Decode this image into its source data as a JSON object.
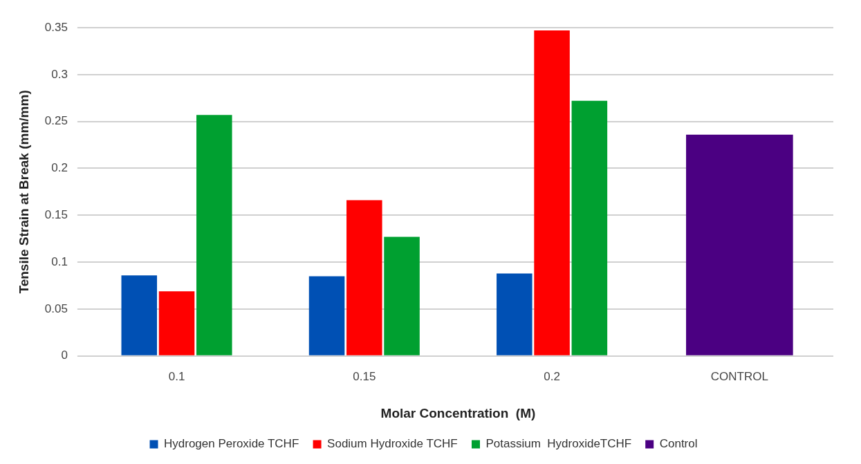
{
  "chart_data": {
    "type": "bar",
    "xlabel": "Molar Concentration  (M)",
    "ylabel": "Tensile Strain at Break (mm/mm)",
    "categories": [
      "0.1",
      "0.15",
      "0.2",
      "CONTROL"
    ],
    "series": [
      {
        "name": "Hydrogen Peroxide TCHF",
        "color": "#0050b4",
        "values": [
          0.086,
          0.085,
          0.088,
          null
        ]
      },
      {
        "name": "Sodium Hydroxide TCHF",
        "color": "#ff0000",
        "values": [
          0.069,
          0.166,
          0.347,
          null
        ]
      },
      {
        "name": "Potassium  HydroxideTCHF",
        "color": "#00a030",
        "values": [
          0.257,
          0.127,
          0.272,
          null
        ]
      },
      {
        "name": "Control",
        "color": "#4b0082",
        "values": [
          null,
          null,
          null,
          0.236
        ]
      }
    ],
    "ylim": [
      0,
      0.35
    ],
    "yticks": [
      0,
      0.05,
      0.1,
      0.15,
      0.2,
      0.25,
      0.3,
      0.35
    ],
    "grid": "y",
    "legend": "bottom"
  }
}
